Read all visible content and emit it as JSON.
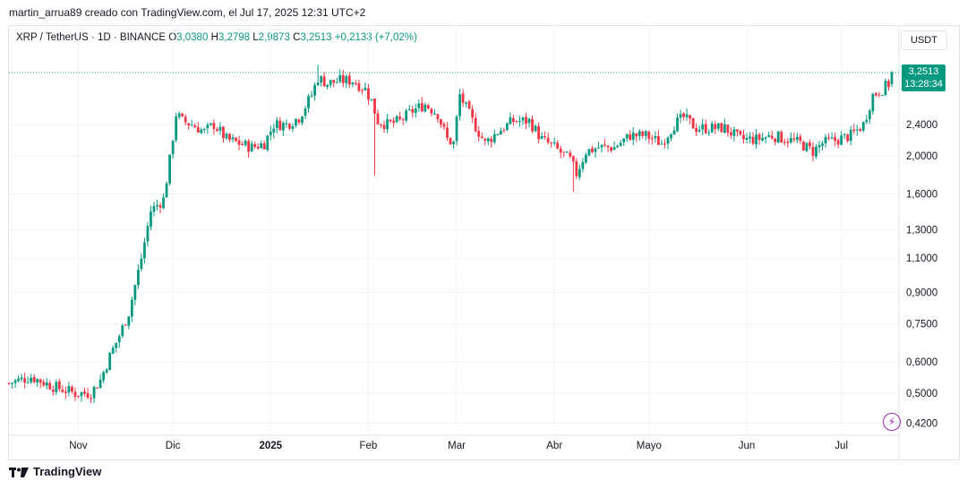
{
  "header": {
    "text": "martin_arrua89 creado con TradingView.com, el Jul 17, 2025 12:31 UTC+2"
  },
  "symbol": {
    "name": "XRP / TetherUS · 1D · BINANCE",
    "o_label": "O",
    "o_value": "3,0380",
    "h_label": "H",
    "h_value": "3,2798",
    "l_label": "L",
    "l_value": "2,9873",
    "c_label": "C",
    "c_value": "3,2513",
    "change": "+0,2133 (+7,02%)"
  },
  "currency_button": "USDT",
  "last_price": {
    "value": "3,2513",
    "countdown": "13:28:34"
  },
  "footer": {
    "brand": "TradingView"
  },
  "colors": {
    "up": "#089981",
    "down": "#f23645",
    "grid": "#f0f3fa",
    "last_line": "#089981"
  },
  "icons": {
    "bolt": "lightning-bolt-icon",
    "logo": "tradingview-logo-icon"
  },
  "chart_data": {
    "type": "candlestick",
    "scale": "log",
    "x_tick_labels": [
      "Nov",
      "Dic",
      "2025",
      "Feb",
      "Mar",
      "Abr",
      "Mayo",
      "Jun",
      "Jul"
    ],
    "y_tick_labels": [
      "2,4000",
      "2,0000",
      "1,6000",
      "1,3000",
      "1,1000",
      "0,9000",
      "0,7500",
      "0,6000",
      "0,5000",
      "0,4200"
    ],
    "y_tick_values": [
      2.4,
      2.0,
      1.6,
      1.3,
      1.1,
      0.9,
      0.75,
      0.6,
      0.5,
      0.42
    ],
    "close_path": [
      [
        "2024-10-10",
        0.53
      ],
      [
        "2024-10-17",
        0.55
      ],
      [
        "2024-10-24",
        0.52
      ],
      [
        "2024-10-31",
        0.5
      ],
      [
        "2024-11-05",
        0.5
      ],
      [
        "2024-11-08",
        0.54
      ],
      [
        "2024-11-11",
        0.62
      ],
      [
        "2024-11-14",
        0.7
      ],
      [
        "2024-11-17",
        0.8
      ],
      [
        "2024-11-21",
        1.1
      ],
      [
        "2024-11-24",
        1.45
      ],
      [
        "2024-11-28",
        1.55
      ],
      [
        "2024-11-30",
        1.95
      ],
      [
        "2024-12-02",
        2.55
      ],
      [
        "2024-12-04",
        2.45
      ],
      [
        "2024-12-07",
        2.4
      ],
      [
        "2024-12-11",
        2.3
      ],
      [
        "2024-12-14",
        2.4
      ],
      [
        "2024-12-18",
        2.2
      ],
      [
        "2024-12-22",
        2.15
      ],
      [
        "2024-12-26",
        2.1
      ],
      [
        "2024-12-30",
        2.15
      ],
      [
        "2025-01-02",
        2.4
      ],
      [
        "2025-01-06",
        2.4
      ],
      [
        "2025-01-10",
        2.5
      ],
      [
        "2025-01-14",
        2.85
      ],
      [
        "2025-01-16",
        3.15
      ],
      [
        "2025-01-19",
        3.05
      ],
      [
        "2025-01-23",
        3.1
      ],
      [
        "2025-01-27",
        3.1
      ],
      [
        "2025-01-31",
        2.95
      ],
      [
        "2025-02-02",
        2.75
      ],
      [
        "2025-02-04",
        2.45
      ],
      [
        "2025-02-07",
        2.4
      ],
      [
        "2025-02-11",
        2.45
      ],
      [
        "2025-02-15",
        2.6
      ],
      [
        "2025-02-19",
        2.7
      ],
      [
        "2025-02-23",
        2.55
      ],
      [
        "2025-02-26",
        2.2
      ],
      [
        "2025-02-28",
        2.15
      ],
      [
        "2025-03-02",
        2.85
      ],
      [
        "2025-03-06",
        2.45
      ],
      [
        "2025-03-10",
        2.15
      ],
      [
        "2025-03-14",
        2.3
      ],
      [
        "2025-03-19",
        2.45
      ],
      [
        "2025-03-24",
        2.45
      ],
      [
        "2025-03-28",
        2.2
      ],
      [
        "2025-04-01",
        2.1
      ],
      [
        "2025-04-06",
        1.95
      ],
      [
        "2025-04-08",
        1.8
      ],
      [
        "2025-04-11",
        2.05
      ],
      [
        "2025-04-15",
        2.1
      ],
      [
        "2025-04-20",
        2.1
      ],
      [
        "2025-04-25",
        2.25
      ],
      [
        "2025-04-30",
        2.25
      ],
      [
        "2025-05-05",
        2.15
      ],
      [
        "2025-05-09",
        2.4
      ],
      [
        "2025-05-12",
        2.5
      ],
      [
        "2025-05-16",
        2.35
      ],
      [
        "2025-05-20",
        2.35
      ],
      [
        "2025-05-25",
        2.35
      ],
      [
        "2025-05-30",
        2.2
      ],
      [
        "2025-06-04",
        2.2
      ],
      [
        "2025-06-09",
        2.25
      ],
      [
        "2025-06-14",
        2.2
      ],
      [
        "2025-06-18",
        2.15
      ],
      [
        "2025-06-22",
        2.05
      ],
      [
        "2025-06-25",
        2.15
      ],
      [
        "2025-06-30",
        2.2
      ],
      [
        "2025-07-04",
        2.25
      ],
      [
        "2025-07-08",
        2.4
      ],
      [
        "2025-07-11",
        2.85
      ],
      [
        "2025-07-14",
        2.95
      ],
      [
        "2025-07-16",
        3.04
      ],
      [
        "2025-07-17",
        3.2513
      ]
    ],
    "last_candle": {
      "date": "2025-07-17",
      "open": 3.038,
      "high": 3.2798,
      "low": 2.9873,
      "close": 3.2513
    },
    "extreme_lows": [
      [
        "2025-02-03",
        1.78
      ],
      [
        "2025-04-07",
        1.62
      ]
    ],
    "extreme_highs": [
      [
        "2025-01-16",
        3.4
      ]
    ]
  }
}
